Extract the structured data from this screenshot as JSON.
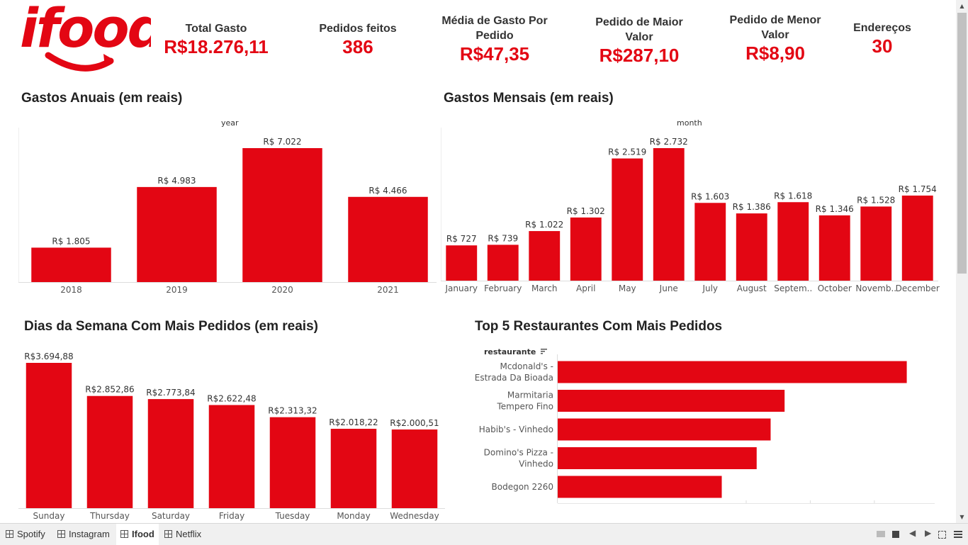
{
  "brand": {
    "logo_text": "ifood",
    "color": "#e30613"
  },
  "kpis": [
    {
      "label": "Total Gasto",
      "value": "R$18.276,11"
    },
    {
      "label": "Pedidos feitos",
      "value": "386"
    },
    {
      "label": "Média de Gasto Por Pedido",
      "value": "R$47,35"
    },
    {
      "label": "Pedido de Maior Valor",
      "value": "R$287,10"
    },
    {
      "label": "Pedido de Menor Valor",
      "value": "R$8,90"
    },
    {
      "label": "Endereços",
      "value": "30"
    }
  ],
  "sections": {
    "annual": "Gastos Anuais (em reais)",
    "monthly": "Gastos Mensais (em reais)",
    "weekday": "Dias da Semana Com Mais Pedidos (em reais)",
    "top5": "Top 5 Restaurantes Com Mais Pedidos"
  },
  "chart_data": [
    {
      "type": "bar",
      "title": "Gastos Anuais (em reais)",
      "xlabel": "year",
      "categories": [
        "2018",
        "2019",
        "2020",
        "2021"
      ],
      "values": [
        1805,
        4983,
        7022,
        4466
      ],
      "labels": [
        "R$ 1.805",
        "R$ 4.983",
        "R$ 7.022",
        "R$ 4.466"
      ],
      "ylim": [
        0,
        7022
      ]
    },
    {
      "type": "bar",
      "title": "Gastos Mensais (em reais)",
      "xlabel": "month",
      "categories": [
        "January",
        "February",
        "March",
        "April",
        "May",
        "June",
        "July",
        "August",
        "Septem..",
        "October",
        "Novemb..",
        "December"
      ],
      "values": [
        727,
        739,
        1022,
        1302,
        2519,
        2732,
        1603,
        1386,
        1618,
        1346,
        1528,
        1754
      ],
      "labels": [
        "R$ 727",
        "R$ 739",
        "R$ 1.022",
        "R$ 1.302",
        "R$ 2.519",
        "R$ 2.732",
        "R$ 1.603",
        "R$ 1.386",
        "R$ 1.618",
        "R$ 1.346",
        "R$ 1.528",
        "R$ 1.754"
      ],
      "ylim": [
        0,
        2732
      ]
    },
    {
      "type": "bar",
      "title": "Dias da Semana Com Mais Pedidos (em reais)",
      "categories": [
        "Sunday",
        "Thursday",
        "Saturday",
        "Friday",
        "Tuesday",
        "Monday",
        "Wednesday"
      ],
      "values": [
        3694.88,
        2852.86,
        2773.84,
        2622.48,
        2313.32,
        2018.22,
        2000.51
      ],
      "labels": [
        "R$3.694,88",
        "R$2.852,86",
        "R$2.773,84",
        "R$2.622,48",
        "R$2.313,32",
        "R$2.018,22",
        "R$2.000,51"
      ],
      "ylim": [
        0,
        3694.88
      ]
    },
    {
      "type": "bar",
      "orientation": "horizontal",
      "title": "Top 5 Restaurantes Com Mais Pedidos",
      "ylabel": "restaurante",
      "categories": [
        [
          "Mcdonald's -",
          "Estrada Da Bioada"
        ],
        [
          "Marmitaria",
          "Tempero Fino"
        ],
        [
          "Habib's - Vinhedo"
        ],
        [
          "Domino's Pizza -",
          "Vinhedo"
        ],
        [
          "Bodegon 2260"
        ]
      ],
      "values": [
        100,
        65,
        61,
        57,
        47
      ],
      "xlim": [
        0,
        108
      ]
    }
  ],
  "tabs": [
    {
      "label": "Spotify",
      "active": false
    },
    {
      "label": "Instagram",
      "active": false
    },
    {
      "label": "Ifood",
      "active": true
    },
    {
      "label": "Netflix",
      "active": false
    }
  ]
}
